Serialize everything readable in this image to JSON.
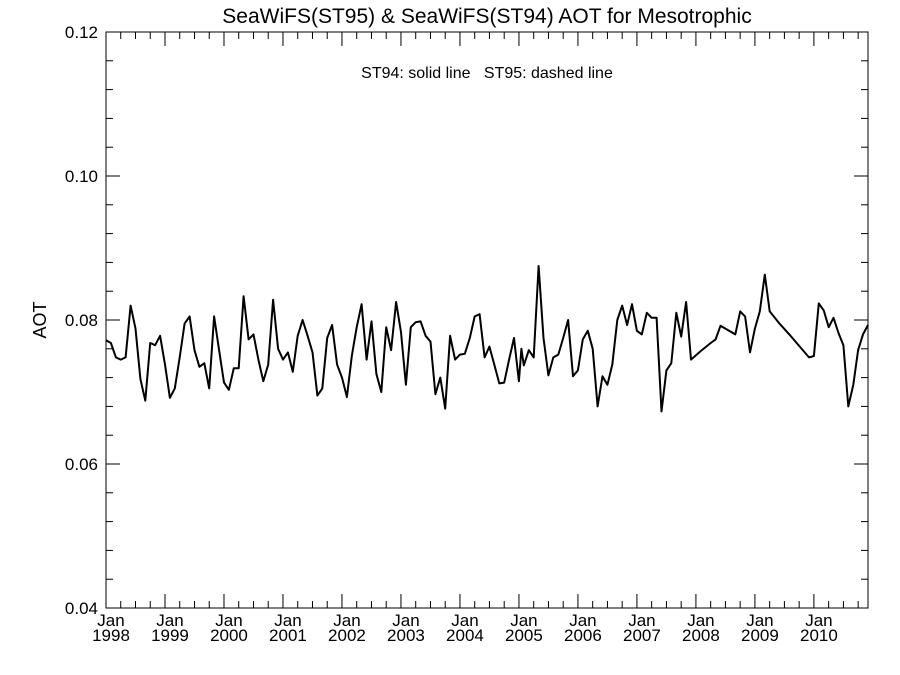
{
  "chart_data": {
    "type": "line",
    "title": "SeaWiFS(ST95) & SeaWiFS(ST94)  AOT for Mesotrophic",
    "annotation": "ST94: solid line   ST95: dashed line",
    "xlabel": "",
    "ylabel": "AOT",
    "xlim": [
      1998.0,
      2010.917
    ],
    "ylim": [
      0.04,
      0.12
    ],
    "y_ticks": [
      0.04,
      0.06,
      0.08,
      0.1,
      0.12
    ],
    "y_tick_labels": [
      "0.04",
      "0.06",
      "0.08",
      "0.10",
      "0.12"
    ],
    "x_ticks": [
      1998,
      1999,
      2000,
      2001,
      2002,
      2003,
      2004,
      2005,
      2006,
      2007,
      2008,
      2009,
      2010
    ],
    "x_tick_labels": [
      {
        "month": "Jan",
        "year": "1998"
      },
      {
        "month": "Jan",
        "year": "1999"
      },
      {
        "month": "Jan",
        "year": "2000"
      },
      {
        "month": "Jan",
        "year": "2001"
      },
      {
        "month": "Jan",
        "year": "2002"
      },
      {
        "month": "Jan",
        "year": "2003"
      },
      {
        "month": "Jan",
        "year": "2004"
      },
      {
        "month": "Jan",
        "year": "2005"
      },
      {
        "month": "Jan",
        "year": "2006"
      },
      {
        "month": "Jan",
        "year": "2007"
      },
      {
        "month": "Jan",
        "year": "2008"
      },
      {
        "month": "Jan",
        "year": "2009"
      },
      {
        "month": "Jan",
        "year": "2010"
      }
    ],
    "series": [
      {
        "line_style": "solid",
        "color": "#000000",
        "points": [
          [
            1998.0,
            0.0772
          ],
          [
            1998.083,
            0.0768
          ],
          [
            1998.167,
            0.0748
          ],
          [
            1998.25,
            0.0745
          ],
          [
            1998.333,
            0.0748
          ],
          [
            1998.417,
            0.082
          ],
          [
            1998.5,
            0.0788
          ],
          [
            1998.583,
            0.0718
          ],
          [
            1998.667,
            0.0688
          ],
          [
            1998.75,
            0.0768
          ],
          [
            1998.833,
            0.0765
          ],
          [
            1998.917,
            0.0778
          ],
          [
            1999.0,
            0.0738
          ],
          [
            1999.083,
            0.0692
          ],
          [
            1999.167,
            0.0705
          ],
          [
            1999.25,
            0.0748
          ],
          [
            1999.333,
            0.0795
          ],
          [
            1999.417,
            0.0805
          ],
          [
            1999.5,
            0.0758
          ],
          [
            1999.583,
            0.0735
          ],
          [
            1999.667,
            0.074
          ],
          [
            1999.75,
            0.0705
          ],
          [
            1999.833,
            0.0805
          ],
          [
            1999.917,
            0.0758
          ],
          [
            2000.0,
            0.0713
          ],
          [
            2000.083,
            0.0703
          ],
          [
            2000.167,
            0.0733
          ],
          [
            2000.25,
            0.0733
          ],
          [
            2000.333,
            0.0833
          ],
          [
            2000.417,
            0.0773
          ],
          [
            2000.5,
            0.078
          ],
          [
            2000.583,
            0.0745
          ],
          [
            2000.667,
            0.0715
          ],
          [
            2000.75,
            0.0738
          ],
          [
            2000.833,
            0.0828
          ],
          [
            2000.917,
            0.076
          ],
          [
            2001.0,
            0.0745
          ],
          [
            2001.083,
            0.0755
          ],
          [
            2001.167,
            0.0728
          ],
          [
            2001.25,
            0.0778
          ],
          [
            2001.333,
            0.08
          ],
          [
            2001.417,
            0.0778
          ],
          [
            2001.5,
            0.0755
          ],
          [
            2001.583,
            0.0695
          ],
          [
            2001.667,
            0.0705
          ],
          [
            2001.75,
            0.0775
          ],
          [
            2001.833,
            0.0793
          ],
          [
            2001.917,
            0.0738
          ],
          [
            2002.0,
            0.072
          ],
          [
            2002.083,
            0.0693
          ],
          [
            2002.167,
            0.075
          ],
          [
            2002.25,
            0.079
          ],
          [
            2002.333,
            0.0822
          ],
          [
            2002.417,
            0.0745
          ],
          [
            2002.5,
            0.0798
          ],
          [
            2002.583,
            0.0725
          ],
          [
            2002.667,
            0.07
          ],
          [
            2002.75,
            0.079
          ],
          [
            2002.833,
            0.0758
          ],
          [
            2002.917,
            0.0825
          ],
          [
            2003.0,
            0.0783
          ],
          [
            2003.083,
            0.071
          ],
          [
            2003.167,
            0.079
          ],
          [
            2003.25,
            0.0797
          ],
          [
            2003.333,
            0.0798
          ],
          [
            2003.417,
            0.0778
          ],
          [
            2003.5,
            0.077
          ],
          [
            2003.583,
            0.0697
          ],
          [
            2003.667,
            0.072
          ],
          [
            2003.75,
            0.0677
          ],
          [
            2003.833,
            0.0778
          ],
          [
            2003.917,
            0.0745
          ],
          [
            2004.0,
            0.0752
          ],
          [
            2004.083,
            0.0753
          ],
          [
            2004.167,
            0.0775
          ],
          [
            2004.25,
            0.0805
          ],
          [
            2004.333,
            0.0808
          ],
          [
            2004.417,
            0.0748
          ],
          [
            2004.5,
            0.0763
          ],
          [
            2004.583,
            0.0738
          ],
          [
            2004.667,
            0.0712
          ],
          [
            2004.75,
            0.0713
          ],
          [
            2004.833,
            0.0745
          ],
          [
            2004.917,
            0.0775
          ],
          [
            2005.0,
            0.0715
          ],
          [
            2005.042,
            0.076
          ],
          [
            2005.083,
            0.0737
          ],
          [
            2005.167,
            0.0758
          ],
          [
            2005.25,
            0.0748
          ],
          [
            2005.333,
            0.0875
          ],
          [
            2005.417,
            0.0775
          ],
          [
            2005.5,
            0.0723
          ],
          [
            2005.583,
            0.0748
          ],
          [
            2005.667,
            0.0752
          ],
          [
            2005.75,
            0.0775
          ],
          [
            2005.833,
            0.08
          ],
          [
            2005.917,
            0.0722
          ],
          [
            2006.0,
            0.073
          ],
          [
            2006.083,
            0.0773
          ],
          [
            2006.167,
            0.0785
          ],
          [
            2006.25,
            0.076
          ],
          [
            2006.333,
            0.068
          ],
          [
            2006.417,
            0.0722
          ],
          [
            2006.5,
            0.071
          ],
          [
            2006.583,
            0.0738
          ],
          [
            2006.667,
            0.08
          ],
          [
            2006.75,
            0.082
          ],
          [
            2006.833,
            0.0793
          ],
          [
            2006.917,
            0.0822
          ],
          [
            2007.0,
            0.0785
          ],
          [
            2007.083,
            0.078
          ],
          [
            2007.167,
            0.081
          ],
          [
            2007.25,
            0.0803
          ],
          [
            2007.333,
            0.0803
          ],
          [
            2007.417,
            0.0673
          ],
          [
            2007.5,
            0.073
          ],
          [
            2007.583,
            0.074
          ],
          [
            2007.667,
            0.081
          ],
          [
            2007.75,
            0.0777
          ],
          [
            2007.833,
            0.0825
          ],
          [
            2007.917,
            0.0745
          ],
          [
            2008.083,
            0.0757
          ],
          [
            2008.25,
            0.0768
          ],
          [
            2008.333,
            0.0773
          ],
          [
            2008.417,
            0.0792
          ],
          [
            2008.5,
            0.0788
          ],
          [
            2008.667,
            0.078
          ],
          [
            2008.75,
            0.0812
          ],
          [
            2008.833,
            0.0805
          ],
          [
            2008.917,
            0.0755
          ],
          [
            2009.0,
            0.0788
          ],
          [
            2009.083,
            0.0812
          ],
          [
            2009.167,
            0.0863
          ],
          [
            2009.25,
            0.0812
          ],
          [
            2009.417,
            0.0795
          ],
          [
            2009.583,
            0.078
          ],
          [
            2009.917,
            0.0748
          ],
          [
            2010.0,
            0.075
          ],
          [
            2010.083,
            0.0823
          ],
          [
            2010.167,
            0.0813
          ],
          [
            2010.25,
            0.079
          ],
          [
            2010.333,
            0.0803
          ],
          [
            2010.417,
            0.0782
          ],
          [
            2010.5,
            0.0765
          ],
          [
            2010.583,
            0.068
          ],
          [
            2010.667,
            0.071
          ],
          [
            2010.75,
            0.0758
          ],
          [
            2010.833,
            0.078
          ],
          [
            2010.917,
            0.0793
          ]
        ]
      }
    ]
  }
}
